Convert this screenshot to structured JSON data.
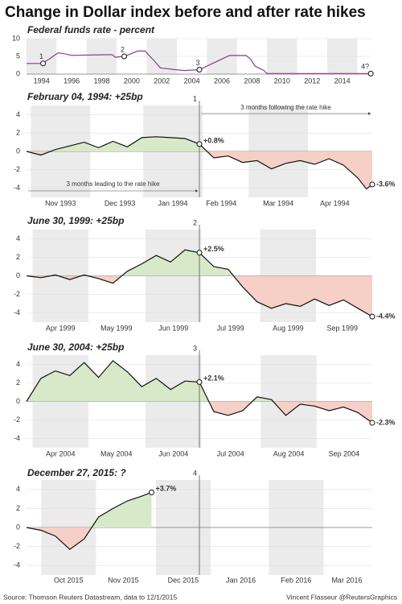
{
  "title": "Change in Dollar index before and after rate hikes",
  "source": "Source: Thomson Reuters Datastream, data to 12/1/2015",
  "credit": "Vincent Flasseur @ReutersGraphics",
  "chart_data": [
    {
      "type": "line",
      "subtitle": "Federal funds rate - percent",
      "area": false,
      "x": [
        1993,
        1994,
        1994.5,
        1995.1,
        1995.5,
        1996,
        1998.7,
        1998.9,
        1999.5,
        2000.4,
        2000.9,
        2001.1,
        2001.5,
        2001.9,
        2002.9,
        2003.5,
        2004.5,
        2005,
        2005.5,
        2006,
        2006.5,
        2007.6,
        2007.9,
        2008.2,
        2008.8,
        2009,
        2015.9
      ],
      "values": [
        3,
        3,
        4.2,
        6,
        5.75,
        5.3,
        5.5,
        4.75,
        5,
        6.5,
        6.5,
        5.5,
        3.75,
        1.75,
        1.25,
        1,
        1.25,
        2.25,
        3.25,
        4.25,
        5.25,
        5.25,
        4.25,
        2.25,
        1,
        0.15,
        0.15
      ],
      "xlim": [
        1993,
        2016
      ],
      "xticks": [
        1994,
        1996,
        1998,
        2000,
        2002,
        2004,
        2006,
        2008,
        2010,
        2012,
        2014
      ],
      "ylim": [
        0,
        10
      ],
      "yticks": [
        0,
        5,
        10
      ],
      "colors": {
        "line": "#8a3f8c"
      },
      "annotations": [
        {
          "x": 1994.1,
          "y": 3,
          "label": "1"
        },
        {
          "x": 1999.5,
          "y": 5,
          "label": "2"
        },
        {
          "x": 2004.5,
          "y": 1.25,
          "label": "3"
        },
        {
          "x": 2015.9,
          "y": 0.15,
          "label": "4?"
        }
      ]
    },
    {
      "type": "line",
      "subtitle": "February 04, 1994: +25bp",
      "area": true,
      "x": [
        -3,
        -2.75,
        -2.5,
        -2.25,
        -2,
        -1.75,
        -1.5,
        -1.25,
        -1,
        -0.75,
        -0.5,
        -0.25,
        0,
        0.25,
        0.5,
        0.75,
        1,
        1.25,
        1.5,
        1.75,
        2,
        2.25,
        2.5,
        2.75,
        2.9,
        3
      ],
      "values": [
        0,
        -0.4,
        0.2,
        0.6,
        1.0,
        0.4,
        1.1,
        0.5,
        1.5,
        1.6,
        1.5,
        1.4,
        0.8,
        -0.7,
        -0.5,
        -1.2,
        -1.0,
        -1.9,
        -1.3,
        -1.0,
        -1.4,
        -0.8,
        -1.5,
        -2.9,
        -4.1,
        -3.6
      ],
      "xlim": [
        -3,
        3
      ],
      "xticks": [
        {
          "value": -2.41,
          "label": "Nov 1993"
        },
        {
          "value": -1.38,
          "label": "Dec 1993"
        },
        {
          "value": -0.46,
          "label": "Jan 1994"
        },
        {
          "value": 0.38,
          "label": "Feb 1994"
        },
        {
          "value": 1.37,
          "label": "Mar 1994"
        },
        {
          "value": 2.35,
          "label": "Apr 1994"
        }
      ],
      "ylim": [
        -5,
        5
      ],
      "yticks": [
        -4,
        -2,
        0,
        2,
        4
      ],
      "colors": {
        "line": "#111",
        "positive": "#7ab55c",
        "negative": "#e0654b",
        "positive_fill": "#d8e9c9",
        "negative_fill": "#f6cfc6"
      },
      "hike": {
        "x": 0,
        "label": "1"
      },
      "notes": {
        "before": "3 months leading to the rate hike",
        "after": "3 months following the rate hike"
      },
      "annotations": [
        {
          "x": 0,
          "y": 0.8,
          "label": "+0.8%"
        },
        {
          "x": 3,
          "y": -3.6,
          "label": "-3.6%"
        }
      ]
    },
    {
      "type": "line",
      "subtitle": "June 30, 1999: +25bp",
      "area": true,
      "x": [
        -3,
        -2.75,
        -2.5,
        -2.25,
        -2,
        -1.75,
        -1.5,
        -1.25,
        -1,
        -0.75,
        -0.5,
        -0.25,
        0,
        0.25,
        0.5,
        0.75,
        1,
        1.25,
        1.5,
        1.75,
        2,
        2.25,
        2.5,
        2.75,
        3
      ],
      "values": [
        0,
        -0.2,
        0.1,
        -0.4,
        0.1,
        -0.3,
        -0.8,
        0.5,
        1.3,
        2.2,
        1.5,
        2.8,
        2.5,
        1.0,
        0.7,
        -1.2,
        -2.8,
        -3.5,
        -3.0,
        -3.3,
        -2.5,
        -3.2,
        -2.6,
        -3.5,
        -4.4
      ],
      "xlim": [
        -3,
        3
      ],
      "xticks": [
        {
          "value": -2.41,
          "label": "Apr 1999"
        },
        {
          "value": -1.44,
          "label": "May 1999"
        },
        {
          "value": -0.45,
          "label": "Jun 1999"
        },
        {
          "value": 0.54,
          "label": "Jul 1999"
        },
        {
          "value": 1.54,
          "label": "Aug 1999"
        },
        {
          "value": 2.48,
          "label": "Sep 1999"
        }
      ],
      "ylim": [
        -5,
        5
      ],
      "yticks": [
        -4,
        -2,
        0,
        2,
        4
      ],
      "colors": {
        "line": "#111",
        "positive": "#7ab55c",
        "negative": "#e0654b",
        "positive_fill": "#d8e9c9",
        "negative_fill": "#f6cfc6"
      },
      "hike": {
        "x": 0,
        "label": "2"
      },
      "annotations": [
        {
          "x": 0,
          "y": 2.5,
          "label": "+2.5%"
        },
        {
          "x": 3,
          "y": -4.4,
          "label": "-4.4%"
        }
      ]
    },
    {
      "type": "line",
      "subtitle": "June 30, 2004: +25bp",
      "area": true,
      "x": [
        -3,
        -2.75,
        -2.5,
        -2.25,
        -2,
        -1.75,
        -1.5,
        -1.25,
        -1,
        -0.75,
        -0.5,
        -0.25,
        0,
        0.25,
        0.5,
        0.75,
        1,
        1.25,
        1.5,
        1.75,
        2,
        2.25,
        2.5,
        2.75,
        3
      ],
      "values": [
        0,
        2.5,
        3.3,
        2.8,
        4.2,
        2.6,
        4.4,
        3.2,
        1.6,
        2.5,
        1.3,
        2.2,
        2.1,
        -1.1,
        -1.5,
        -1.0,
        0.5,
        0.2,
        -1.5,
        -0.3,
        -0.5,
        -1.0,
        -0.6,
        -1.2,
        -2.3
      ],
      "xlim": [
        -3,
        3
      ],
      "xticks": [
        {
          "value": -2.41,
          "label": "Apr 2004"
        },
        {
          "value": -1.44,
          "label": "May 2004"
        },
        {
          "value": -0.45,
          "label": "Jun 2004"
        },
        {
          "value": 0.54,
          "label": "Jul 2004"
        },
        {
          "value": 1.55,
          "label": "Aug 2004"
        },
        {
          "value": 2.51,
          "label": "Sep 2004"
        }
      ],
      "ylim": [
        -5,
        5
      ],
      "yticks": [
        -4,
        -2,
        0,
        2,
        4
      ],
      "colors": {
        "line": "#111",
        "positive": "#7ab55c",
        "negative": "#e0654b",
        "positive_fill": "#d8e9c9",
        "negative_fill": "#f6cfc6"
      },
      "hike": {
        "x": 0,
        "label": "3"
      },
      "annotations": [
        {
          "x": 0,
          "y": 2.1,
          "label": "+2.1%"
        },
        {
          "x": 3,
          "y": -2.3,
          "label": "-2.3%"
        }
      ]
    },
    {
      "type": "line",
      "subtitle": "December 27, 2015: ?",
      "area": true,
      "x": [
        -3,
        -2.75,
        -2.5,
        -2.25,
        -2,
        -1.75,
        -1.5,
        -1.25,
        -1,
        -0.83
      ],
      "values": [
        0,
        -0.3,
        -0.9,
        -2.3,
        -1.2,
        1.1,
        2.0,
        2.8,
        3.3,
        3.7
      ],
      "xlim": [
        -3,
        3
      ],
      "xticks": [
        {
          "value": -2.27,
          "label": "Oct 2015"
        },
        {
          "value": -1.32,
          "label": "Nov 2015"
        },
        {
          "value": -0.28,
          "label": "Dec 2015"
        },
        {
          "value": 0.72,
          "label": "Jan 2016"
        },
        {
          "value": 1.68,
          "label": "Feb 2016"
        },
        {
          "value": 2.56,
          "label": "Mar 2016"
        }
      ],
      "ylim": [
        -5,
        5
      ],
      "yticks": [
        -4,
        -2,
        0,
        2,
        4
      ],
      "colors": {
        "line": "#111",
        "positive": "#7ab55c",
        "negative": "#e0654b",
        "positive_fill": "#d8e9c9",
        "negative_fill": "#f6cfc6"
      },
      "hike": {
        "x": 0,
        "label": "4"
      },
      "annotations": [
        {
          "x": -0.83,
          "y": 3.7,
          "label": "+3.7%"
        }
      ]
    }
  ]
}
